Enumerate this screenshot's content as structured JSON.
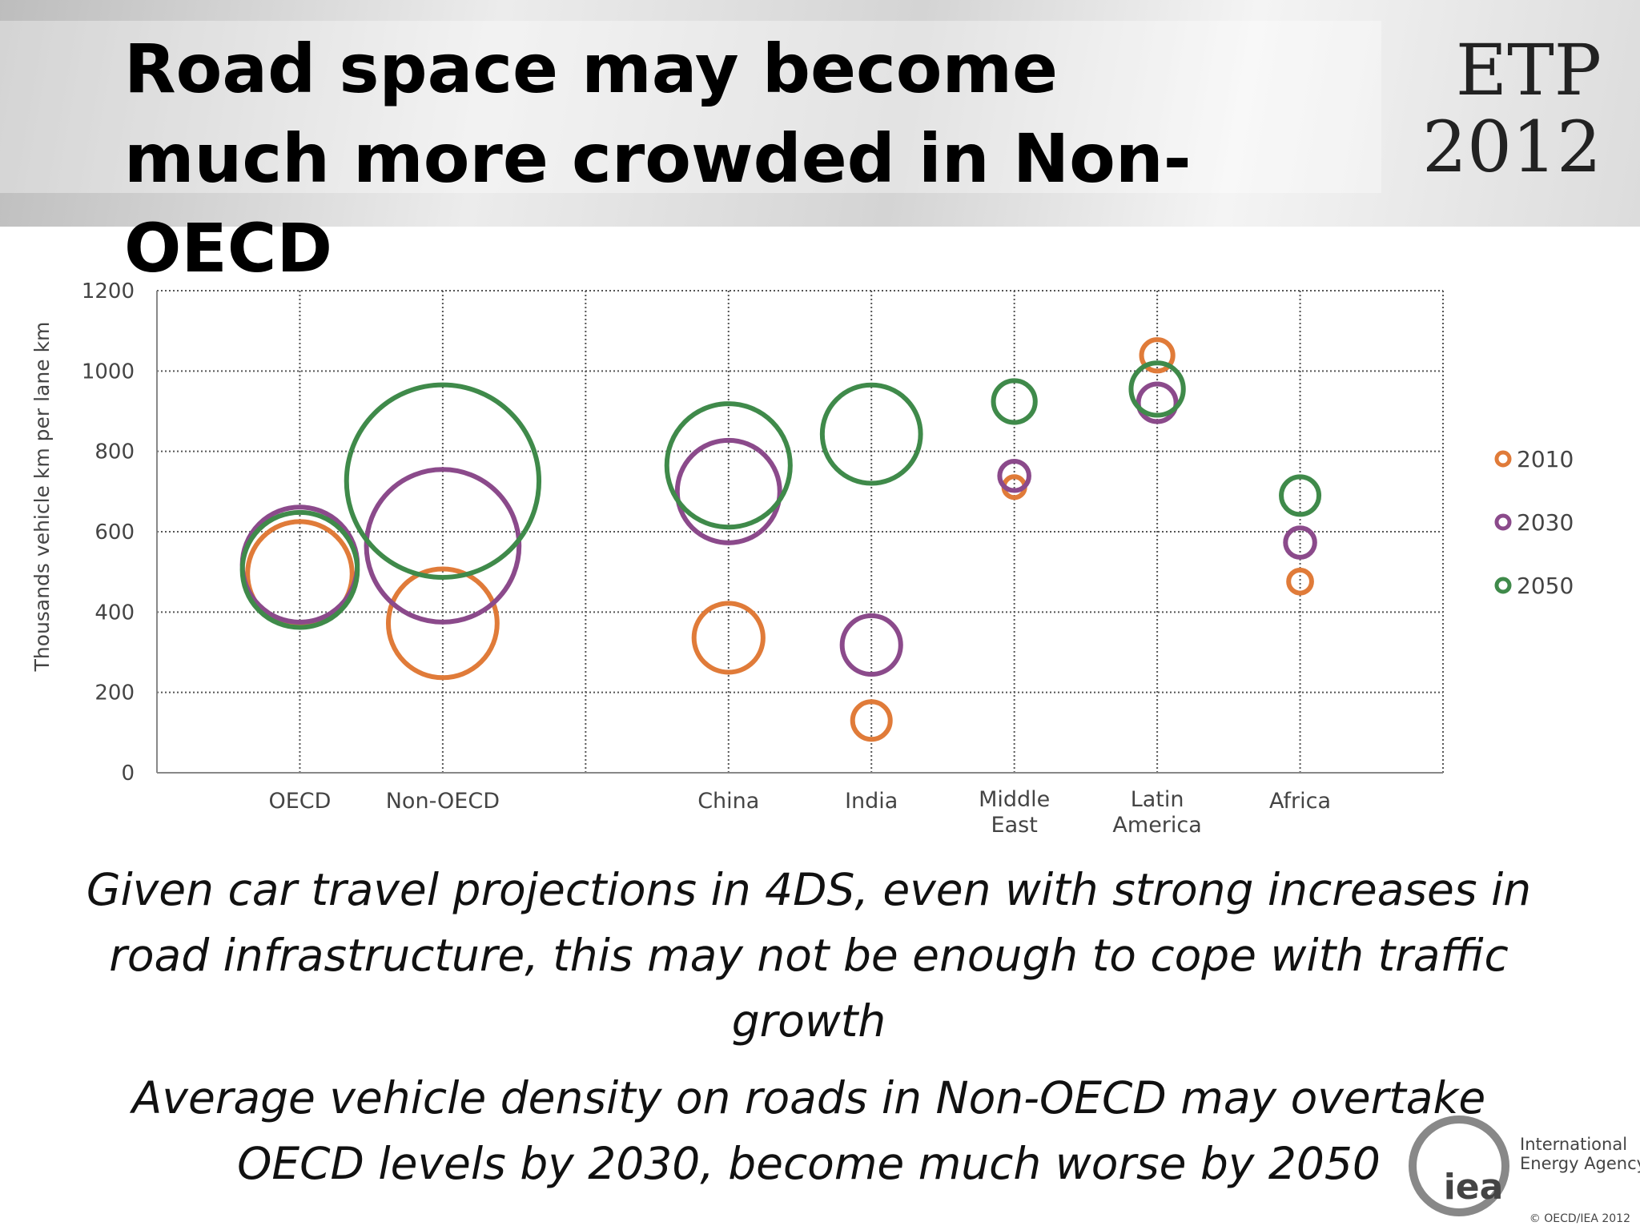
{
  "header": {
    "title": "Road space may become much more crowded in Non-OECD",
    "badge_line1": "ETP",
    "badge_line2": "2012"
  },
  "chart_data": {
    "type": "bubble",
    "y_label": "Thousands vehicle km per lane km",
    "categories": [
      "OECD",
      "Non-OECD",
      null,
      "China",
      "India",
      "Middle East",
      "Latin America",
      "Africa"
    ],
    "ylim": [
      0,
      1200
    ],
    "yticks": [
      0,
      200,
      400,
      600,
      800,
      1000,
      1200
    ],
    "grid": true,
    "legend": "right",
    "series": [
      {
        "name": "2010",
        "color": "#e07b39",
        "values": [
          495,
          372,
          null,
          336,
          130,
          711,
          1039,
          476
        ],
        "sizes": [
          50,
          52,
          null,
          33,
          18,
          10,
          15,
          11
        ]
      },
      {
        "name": "2030",
        "color": "#8b4a8b",
        "values": [
          518,
          565,
          null,
          700,
          318,
          739,
          921,
          573
        ],
        "sizes": [
          55,
          73,
          null,
          49,
          28,
          14,
          18,
          14
        ]
      },
      {
        "name": "2050",
        "color": "#3f8a4a",
        "values": [
          505,
          726,
          null,
          765,
          843,
          924,
          955,
          690
        ],
        "sizes": [
          55,
          92,
          null,
          59,
          47,
          20,
          25,
          18
        ]
      }
    ]
  },
  "notes": [
    "Given car travel projections in 4DS, even with strong increases in road infrastructure, this may not be enough to cope with traffic growth",
    "Average vehicle density on roads in Non-OECD may overtake OECD levels by 2030, become much worse by 2050"
  ],
  "footer": {
    "logo": "iea",
    "org_line1": "International",
    "org_line2": "Energy Agency",
    "copyright": "© OECD/IEA 2012"
  }
}
